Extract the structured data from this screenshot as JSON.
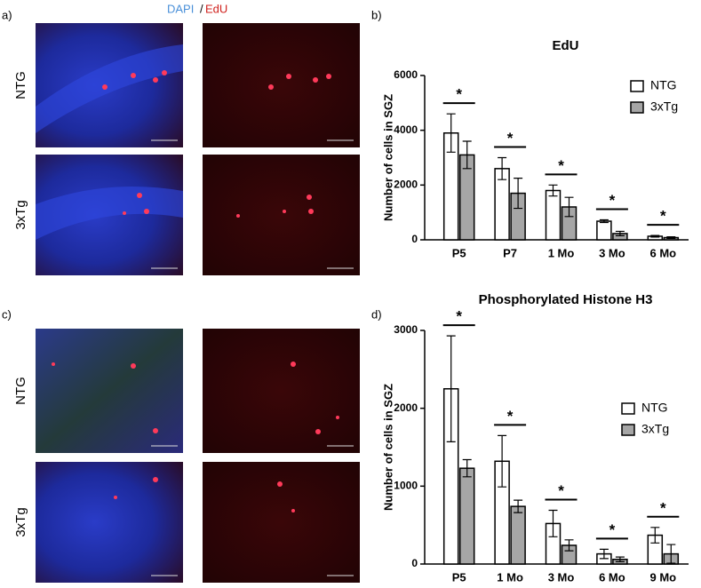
{
  "panels": {
    "a": "a)",
    "b": "b)",
    "c": "c)",
    "d": "d)"
  },
  "stain_header": {
    "dapi": "DAPI",
    "sep": "/",
    "edu": "EdU"
  },
  "row_labels": {
    "a_top": "NTG",
    "a_bottom": "3xTg",
    "c_top": "NTG",
    "c_bottom": "3xTg"
  },
  "chart_data": [
    {
      "type": "bar",
      "title": "EdU",
      "y_label": "Number of cells in SGZ",
      "categories": [
        "P5",
        "P7",
        "1 Mo",
        "3 Mo",
        "6 Mo"
      ],
      "series": [
        {
          "name": "NTG",
          "color": "#ffffff",
          "values": [
            3900,
            2600,
            1800,
            680,
            130
          ],
          "errors": [
            700,
            400,
            200,
            50,
            30
          ]
        },
        {
          "name": "3xTg",
          "color": "#a6a6a6",
          "values": [
            3100,
            1700,
            1200,
            230,
            80
          ],
          "errors": [
            500,
            550,
            350,
            80,
            30
          ]
        }
      ],
      "significance_labels": [
        "*",
        "*",
        "*",
        "*",
        "*"
      ],
      "ylim": [
        0,
        6000
      ],
      "yticks": [
        0,
        2000,
        4000,
        6000
      ],
      "legend": "upper right"
    },
    {
      "type": "bar",
      "title": "Phosphorylated Histone H3",
      "y_label": "Number of cells in SGZ",
      "categories": [
        "P5",
        "1 Mo",
        "3 Mo",
        "6 Mo",
        "9 Mo"
      ],
      "series": [
        {
          "name": "NTG",
          "color": "#ffffff",
          "values": [
            2250,
            1320,
            520,
            130,
            370
          ],
          "errors": [
            680,
            330,
            170,
            60,
            100
          ]
        },
        {
          "name": "3xTg",
          "color": "#a6a6a6",
          "values": [
            1230,
            740,
            240,
            60,
            130
          ],
          "errors": [
            110,
            80,
            70,
            30,
            120
          ]
        }
      ],
      "significance_labels": [
        "*",
        "*",
        "*",
        "*",
        "*"
      ],
      "ylim": [
        0,
        3000
      ],
      "yticks": [
        0,
        1000,
        2000,
        3000
      ],
      "legend": "right"
    }
  ]
}
